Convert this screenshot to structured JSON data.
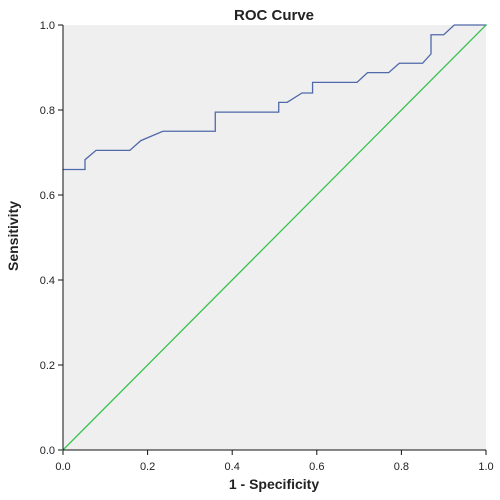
{
  "chart_data": {
    "type": "line",
    "title": "ROC Curve",
    "xlabel": "1 - Specificity",
    "ylabel": "Sensitivity",
    "xlim": [
      0.0,
      1.0
    ],
    "ylim": [
      0.0,
      1.0
    ],
    "x_ticks": [
      "0.0",
      "0.2",
      "0.4",
      "0.6",
      "0.8",
      "1.0"
    ],
    "y_ticks": [
      "0.0",
      "0.2",
      "0.4",
      "0.6",
      "0.8",
      "1.0"
    ],
    "grid": false,
    "legend": "none",
    "colors": {
      "plot_background": "#efefef",
      "axis": "#111111",
      "roc": "#4f69a9",
      "reference": "#37c24e"
    },
    "series": [
      {
        "x": [
          0.0,
          0.052,
          0.052,
          0.078,
          0.158,
          0.184,
          0.236,
          0.36,
          0.36,
          0.51,
          0.51,
          0.53,
          0.565,
          0.59,
          0.59,
          0.695,
          0.72,
          0.77,
          0.795,
          0.85,
          0.87,
          0.87,
          0.9,
          0.925,
          1.0
        ],
        "y": [
          0.66,
          0.66,
          0.683,
          0.705,
          0.705,
          0.728,
          0.75,
          0.75,
          0.795,
          0.795,
          0.818,
          0.818,
          0.84,
          0.84,
          0.865,
          0.865,
          0.888,
          0.888,
          0.91,
          0.91,
          0.932,
          0.977,
          0.977,
          1.0,
          1.0
        ]
      },
      {
        "x": [
          0.0,
          1.0
        ],
        "y": [
          0.0,
          1.0
        ]
      }
    ]
  }
}
